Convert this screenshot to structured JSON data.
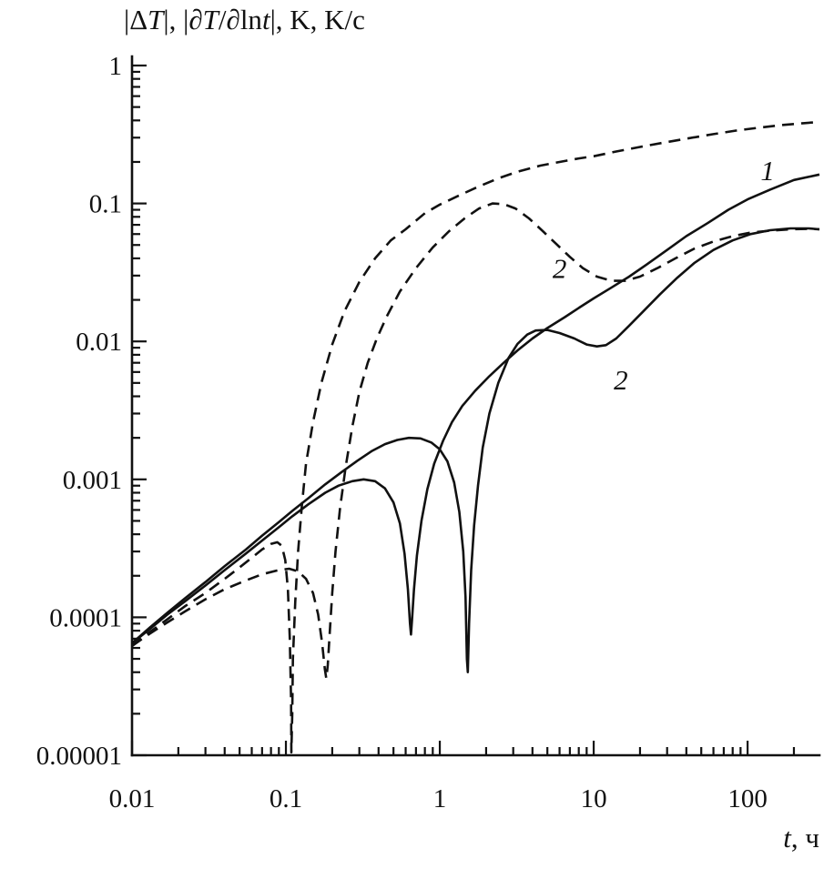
{
  "chart_data": {
    "type": "line",
    "x_scale": "log",
    "y_scale": "log",
    "grid": false,
    "xlim": [
      0.01,
      293
    ],
    "ylim": [
      1e-05,
      1
    ],
    "y_axis_title_segments": [
      {
        "t": "|Δ"
      },
      {
        "t": "T",
        "i": true
      },
      {
        "t": "|, |∂"
      },
      {
        "t": "T",
        "i": true
      },
      {
        "t": "/∂ln"
      },
      {
        "t": "t",
        "i": true
      },
      {
        "t": "|, K, K/с"
      }
    ],
    "x_axis_title_segments": [
      {
        "t": "t",
        "i": true
      },
      {
        "t": ", ч"
      }
    ],
    "x_ticks": [
      {
        "value": 0.01,
        "label": "0.01"
      },
      {
        "value": 0.1,
        "label": "0.1"
      },
      {
        "value": 1,
        "label": "1"
      },
      {
        "value": 10,
        "label": "10"
      },
      {
        "value": 100,
        "label": "100"
      }
    ],
    "y_ticks": [
      {
        "value": 1,
        "label": "1"
      },
      {
        "value": 0.1,
        "label": "0.1"
      },
      {
        "value": 0.01,
        "label": "0.01"
      },
      {
        "value": 0.001,
        "label": "0.001"
      },
      {
        "value": 0.0001,
        "label": "0.0001"
      },
      {
        "value": 1e-05,
        "label": "0.00001"
      }
    ],
    "annotations": [
      {
        "text": "1",
        "t": 135,
        "v": 0.175
      },
      {
        "text": "2",
        "t": 6,
        "v": 0.034
      },
      {
        "text": "2",
        "t": 15,
        "v": 0.0053
      }
    ],
    "ink_color": "#111111",
    "background": "#ffffff",
    "series": [
      {
        "name": "solid-1",
        "label": "1",
        "style": "solid",
        "points": [
          [
            0.01,
            6.5e-05
          ],
          [
            0.013,
            8.2e-05
          ],
          [
            0.017,
            0.000105
          ],
          [
            0.022,
            0.00013
          ],
          [
            0.03,
            0.00017
          ],
          [
            0.04,
            0.00022
          ],
          [
            0.055,
            0.00029
          ],
          [
            0.07,
            0.00036
          ],
          [
            0.09,
            0.00045
          ],
          [
            0.11,
            0.00054
          ],
          [
            0.14,
            0.00066
          ],
          [
            0.18,
            0.0008
          ],
          [
            0.22,
            0.0009
          ],
          [
            0.27,
            0.00097
          ],
          [
            0.32,
            0.001
          ],
          [
            0.38,
            0.00097
          ],
          [
            0.44,
            0.00086
          ],
          [
            0.5,
            0.00068
          ],
          [
            0.55,
            0.00048
          ],
          [
            0.59,
            0.00029
          ],
          [
            0.62,
            0.00016
          ],
          [
            0.64,
            9e-05
          ],
          [
            0.65,
            7.5e-05
          ],
          [
            0.66,
            9.5e-05
          ],
          [
            0.68,
            0.00016
          ],
          [
            0.71,
            0.00028
          ],
          [
            0.76,
            0.0005
          ],
          [
            0.83,
            0.00085
          ],
          [
            0.92,
            0.0013
          ],
          [
            1.05,
            0.0019
          ],
          [
            1.2,
            0.0026
          ],
          [
            1.4,
            0.0034
          ],
          [
            1.7,
            0.0044
          ],
          [
            2.1,
            0.0056
          ],
          [
            2.6,
            0.007
          ],
          [
            3.2,
            0.0086
          ],
          [
            4,
            0.0105
          ],
          [
            5,
            0.0125
          ],
          [
            6.5,
            0.015
          ],
          [
            8,
            0.0175
          ],
          [
            10,
            0.0205
          ],
          [
            13,
            0.0245
          ],
          [
            17,
            0.0295
          ],
          [
            22,
            0.036
          ],
          [
            30,
            0.046
          ],
          [
            40,
            0.058
          ],
          [
            55,
            0.072
          ],
          [
            75,
            0.09
          ],
          [
            100,
            0.107
          ],
          [
            140,
            0.126
          ],
          [
            200,
            0.148
          ],
          [
            293,
            0.162
          ]
        ]
      },
      {
        "name": "solid-2",
        "label": "2",
        "style": "solid",
        "points": [
          [
            0.01,
            6.5e-05
          ],
          [
            0.013,
            8.4e-05
          ],
          [
            0.017,
            0.000108
          ],
          [
            0.022,
            0.000137
          ],
          [
            0.03,
            0.00018
          ],
          [
            0.04,
            0.000235
          ],
          [
            0.055,
            0.00031
          ],
          [
            0.07,
            0.00039
          ],
          [
            0.09,
            0.00049
          ],
          [
            0.11,
            0.00059
          ],
          [
            0.14,
            0.00073
          ],
          [
            0.18,
            0.00092
          ],
          [
            0.23,
            0.00113
          ],
          [
            0.29,
            0.00136
          ],
          [
            0.36,
            0.0016
          ],
          [
            0.44,
            0.0018
          ],
          [
            0.53,
            0.00193
          ],
          [
            0.63,
            0.002
          ],
          [
            0.75,
            0.00198
          ],
          [
            0.88,
            0.00185
          ],
          [
            1.0,
            0.00165
          ],
          [
            1.12,
            0.00135
          ],
          [
            1.24,
            0.00095
          ],
          [
            1.34,
            0.00058
          ],
          [
            1.42,
            0.0003
          ],
          [
            1.47,
            0.00014
          ],
          [
            1.5,
            5e-05
          ],
          [
            1.52,
            4e-05
          ],
          [
            1.55,
            9e-05
          ],
          [
            1.6,
            0.00022
          ],
          [
            1.67,
            0.00046
          ],
          [
            1.77,
            0.0009
          ],
          [
            1.9,
            0.0017
          ],
          [
            2.1,
            0.003
          ],
          [
            2.4,
            0.005
          ],
          [
            2.8,
            0.0076
          ],
          [
            3.2,
            0.0096
          ],
          [
            3.7,
            0.0112
          ],
          [
            4.2,
            0.012
          ],
          [
            5,
            0.0121
          ],
          [
            6,
            0.0115
          ],
          [
            7.5,
            0.0105
          ],
          [
            9,
            0.0095
          ],
          [
            10.5,
            0.0092
          ],
          [
            12,
            0.0094
          ],
          [
            14,
            0.0105
          ],
          [
            17,
            0.013
          ],
          [
            21,
            0.0165
          ],
          [
            27,
            0.022
          ],
          [
            35,
            0.029
          ],
          [
            45,
            0.037
          ],
          [
            60,
            0.046
          ],
          [
            80,
            0.054
          ],
          [
            105,
            0.06
          ],
          [
            140,
            0.064
          ],
          [
            190,
            0.066
          ],
          [
            250,
            0.066
          ],
          [
            293,
            0.065
          ]
        ]
      },
      {
        "name": "dashed-1",
        "label": "",
        "style": "dashed",
        "points": [
          [
            0.01,
            6.2e-05
          ],
          [
            0.013,
            7.8e-05
          ],
          [
            0.017,
            9.7e-05
          ],
          [
            0.022,
            0.00012
          ],
          [
            0.03,
            0.00015
          ],
          [
            0.04,
            0.00019
          ],
          [
            0.05,
            0.00023
          ],
          [
            0.06,
            0.00027
          ],
          [
            0.07,
            0.00031
          ],
          [
            0.08,
            0.00034
          ],
          [
            0.088,
            0.00035
          ],
          [
            0.094,
            0.00033
          ],
          [
            0.099,
            0.00026
          ],
          [
            0.103,
            0.00016
          ],
          [
            0.106,
            7e-05
          ],
          [
            0.108,
            2.5e-05
          ],
          [
            0.1085,
            1.05e-05
          ],
          [
            0.11,
            2e-05
          ],
          [
            0.111,
            5e-05
          ],
          [
            0.115,
            0.00013
          ],
          [
            0.12,
            0.0003
          ],
          [
            0.127,
            0.00065
          ],
          [
            0.135,
            0.0013
          ],
          [
            0.15,
            0.0026
          ],
          [
            0.17,
            0.005
          ],
          [
            0.2,
            0.0095
          ],
          [
            0.24,
            0.0165
          ],
          [
            0.3,
            0.027
          ],
          [
            0.38,
            0.04
          ],
          [
            0.48,
            0.054
          ],
          [
            0.6,
            0.065
          ],
          [
            0.8,
            0.085
          ],
          [
            1.0,
            0.098
          ],
          [
            1.35,
            0.115
          ],
          [
            1.8,
            0.133
          ],
          [
            2.4,
            0.152
          ],
          [
            3.2,
            0.17
          ],
          [
            4.5,
            0.188
          ],
          [
            6,
            0.2
          ],
          [
            8,
            0.212
          ],
          [
            10,
            0.22
          ],
          [
            14,
            0.238
          ],
          [
            20,
            0.257
          ],
          [
            28,
            0.275
          ],
          [
            40,
            0.295
          ],
          [
            60,
            0.318
          ],
          [
            85,
            0.338
          ],
          [
            120,
            0.355
          ],
          [
            170,
            0.371
          ],
          [
            230,
            0.382
          ],
          [
            293,
            0.39
          ]
        ]
      },
      {
        "name": "dashed-2",
        "label": "2",
        "style": "dashed",
        "points": [
          [
            0.01,
            6.2e-05
          ],
          [
            0.013,
            7.6e-05
          ],
          [
            0.017,
            9.2e-05
          ],
          [
            0.022,
            0.00011
          ],
          [
            0.03,
            0.000135
          ],
          [
            0.04,
            0.00016
          ],
          [
            0.055,
            0.000185
          ],
          [
            0.07,
            0.000205
          ],
          [
            0.09,
            0.00022
          ],
          [
            0.105,
            0.000225
          ],
          [
            0.12,
            0.000215
          ],
          [
            0.135,
            0.00019
          ],
          [
            0.15,
            0.00015
          ],
          [
            0.162,
            0.000105
          ],
          [
            0.172,
            6.5e-05
          ],
          [
            0.179,
            4.2e-05
          ],
          [
            0.183,
            3.6e-05
          ],
          [
            0.187,
            4.5e-05
          ],
          [
            0.193,
            8e-05
          ],
          [
            0.2,
            0.00015
          ],
          [
            0.21,
            0.0003
          ],
          [
            0.225,
            0.00062
          ],
          [
            0.245,
            0.00125
          ],
          [
            0.27,
            0.0024
          ],
          [
            0.3,
            0.0043
          ],
          [
            0.34,
            0.007
          ],
          [
            0.39,
            0.0105
          ],
          [
            0.45,
            0.015
          ],
          [
            0.55,
            0.023
          ],
          [
            0.7,
            0.034
          ],
          [
            0.9,
            0.048
          ],
          [
            1.15,
            0.063
          ],
          [
            1.45,
            0.078
          ],
          [
            1.8,
            0.092
          ],
          [
            2.2,
            0.1
          ],
          [
            2.6,
            0.099
          ],
          [
            3.1,
            0.092
          ],
          [
            3.8,
            0.078
          ],
          [
            4.6,
            0.064
          ],
          [
            5.6,
            0.052
          ],
          [
            7,
            0.041
          ],
          [
            8.5,
            0.034
          ],
          [
            10.5,
            0.0295
          ],
          [
            13,
            0.0275
          ],
          [
            16,
            0.0275
          ],
          [
            20,
            0.0295
          ],
          [
            26,
            0.034
          ],
          [
            34,
            0.04
          ],
          [
            45,
            0.047
          ],
          [
            60,
            0.053
          ],
          [
            80,
            0.058
          ],
          [
            105,
            0.0615
          ],
          [
            140,
            0.0635
          ],
          [
            190,
            0.065
          ],
          [
            250,
            0.0655
          ],
          [
            293,
            0.065
          ]
        ]
      }
    ]
  }
}
